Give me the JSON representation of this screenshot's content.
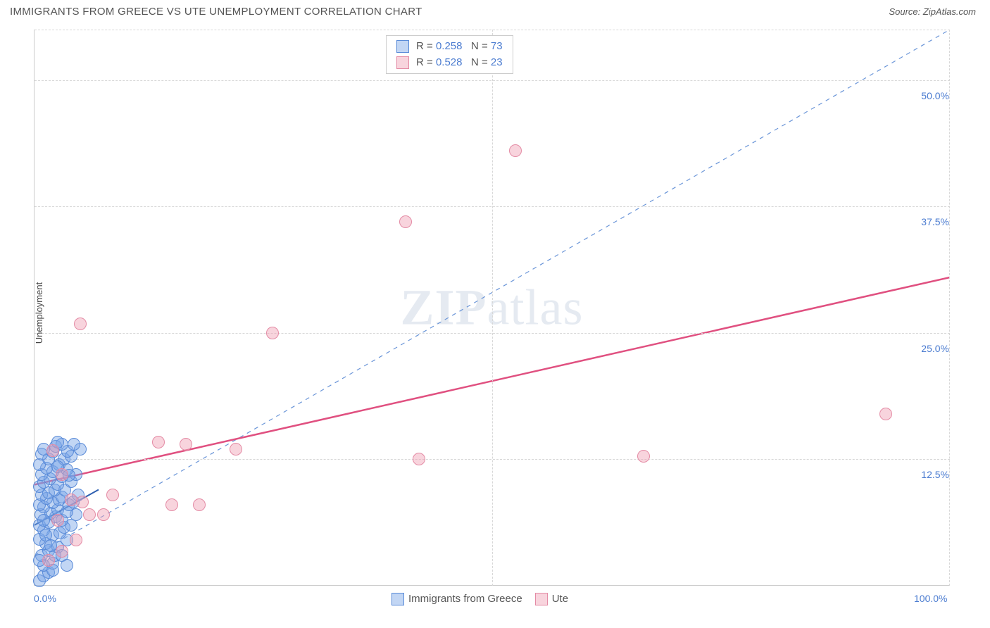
{
  "header": {
    "title": "IMMIGRANTS FROM GREECE VS UTE UNEMPLOYMENT CORRELATION CHART",
    "source": "Source: ZipAtlas.com"
  },
  "chart": {
    "type": "scatter",
    "ylabel": "Unemployment",
    "xlim": [
      0,
      100
    ],
    "ylim": [
      0,
      55
    ],
    "x_ticks": [
      {
        "v": 0,
        "label": "0.0%"
      },
      {
        "v": 100,
        "label": "100.0%"
      }
    ],
    "y_ticks": [
      {
        "v": 12.5,
        "label": "12.5%"
      },
      {
        "v": 25.0,
        "label": "25.0%"
      },
      {
        "v": 37.5,
        "label": "37.5%"
      },
      {
        "v": 50.0,
        "label": "50.0%"
      }
    ],
    "x_grid_at": [
      50
    ],
    "marker_radius": 9,
    "background_color": "#ffffff",
    "grid_color": "#d8d8d8",
    "axis_color": "#cccccc",
    "tick_color": "#4a7bd0",
    "series": [
      {
        "name": "Immigrants from Greece",
        "fill": "rgba(120,165,230,0.45)",
        "stroke": "#5a8bd8",
        "R": "0.258",
        "N": "73",
        "trend": {
          "x1": 0,
          "y1": 6.0,
          "x2": 7,
          "y2": 9.5,
          "color": "#2e5fb0",
          "dash": false,
          "width": 2
        },
        "ref_line": {
          "x1": 0,
          "y1": 3.0,
          "x2": 100,
          "y2": 55,
          "color": "#6a95d8",
          "dash": true,
          "width": 1.2
        },
        "points": [
          [
            0.5,
            0.5
          ],
          [
            1.0,
            1.0
          ],
          [
            1.5,
            1.3
          ],
          [
            1.0,
            2.0
          ],
          [
            2.0,
            2.2
          ],
          [
            0.8,
            3.0
          ],
          [
            1.5,
            3.5
          ],
          [
            2.2,
            3.0
          ],
          [
            2.5,
            3.8
          ],
          [
            1.2,
            4.2
          ],
          [
            3.0,
            3.0
          ],
          [
            0.5,
            4.6
          ],
          [
            2.0,
            5.0
          ],
          [
            3.5,
            4.5
          ],
          [
            1.0,
            5.5
          ],
          [
            2.8,
            5.2
          ],
          [
            0.5,
            6.0
          ],
          [
            3.2,
            5.8
          ],
          [
            1.5,
            6.3
          ],
          [
            2.3,
            6.8
          ],
          [
            4.0,
            6.0
          ],
          [
            0.7,
            7.0
          ],
          [
            3.0,
            6.5
          ],
          [
            1.8,
            7.2
          ],
          [
            2.5,
            7.5
          ],
          [
            4.5,
            7.0
          ],
          [
            1.0,
            7.8
          ],
          [
            3.5,
            7.3
          ],
          [
            0.5,
            8.0
          ],
          [
            2.0,
            8.2
          ],
          [
            3.8,
            8.0
          ],
          [
            1.3,
            8.6
          ],
          [
            2.7,
            8.5
          ],
          [
            4.2,
            8.3
          ],
          [
            0.8,
            9.0
          ],
          [
            3.0,
            8.8
          ],
          [
            1.5,
            9.2
          ],
          [
            2.2,
            9.5
          ],
          [
            4.8,
            9.0
          ],
          [
            0.5,
            9.8
          ],
          [
            3.3,
            9.5
          ],
          [
            1.0,
            10.2
          ],
          [
            2.5,
            10.0
          ],
          [
            4.0,
            10.3
          ],
          [
            1.7,
            10.6
          ],
          [
            3.0,
            10.8
          ],
          [
            0.8,
            11.0
          ],
          [
            2.0,
            11.3
          ],
          [
            4.5,
            11.0
          ],
          [
            1.3,
            11.6
          ],
          [
            3.5,
            11.5
          ],
          [
            0.5,
            12.0
          ],
          [
            2.7,
            12.0
          ],
          [
            1.5,
            12.5
          ],
          [
            3.2,
            12.5
          ],
          [
            0.8,
            13.0
          ],
          [
            2.0,
            13.2
          ],
          [
            4.0,
            12.8
          ],
          [
            1.0,
            13.5
          ],
          [
            3.6,
            13.3
          ],
          [
            2.3,
            13.8
          ],
          [
            5.0,
            13.5
          ],
          [
            4.3,
            14.0
          ],
          [
            3.0,
            14.0
          ],
          [
            2.5,
            14.2
          ],
          [
            1.2,
            5.0
          ],
          [
            1.8,
            4.0
          ],
          [
            0.5,
            2.5
          ],
          [
            2.0,
            1.5
          ],
          [
            3.5,
            2.0
          ],
          [
            1.0,
            6.5
          ],
          [
            2.5,
            11.8
          ],
          [
            3.8,
            10.9
          ]
        ]
      },
      {
        "name": "Ute",
        "fill": "rgba(240,160,180,0.45)",
        "stroke": "#e48ba5",
        "R": "0.528",
        "N": "23",
        "trend": {
          "x1": 0,
          "y1": 10.0,
          "x2": 100,
          "y2": 30.5,
          "color": "#e05080",
          "dash": false,
          "width": 2.5
        },
        "points": [
          [
            1.5,
            2.5
          ],
          [
            3.0,
            3.4
          ],
          [
            4.5,
            4.5
          ],
          [
            2.5,
            6.5
          ],
          [
            6.0,
            7.0
          ],
          [
            7.5,
            7.0
          ],
          [
            4.0,
            8.5
          ],
          [
            5.2,
            8.3
          ],
          [
            8.5,
            9.0
          ],
          [
            15.0,
            8.0
          ],
          [
            18.0,
            8.0
          ],
          [
            3.0,
            11.0
          ],
          [
            5.0,
            25.9
          ],
          [
            26.0,
            25.0
          ],
          [
            13.5,
            14.2
          ],
          [
            16.5,
            14.0
          ],
          [
            22.0,
            13.5
          ],
          [
            40.5,
            36.0
          ],
          [
            52.5,
            43.0
          ],
          [
            66.5,
            12.8
          ],
          [
            93.0,
            17.0
          ],
          [
            42.0,
            12.5
          ],
          [
            2.0,
            13.4
          ]
        ]
      }
    ],
    "watermark": {
      "zip": "ZIP",
      "atlas": "atlas"
    }
  }
}
